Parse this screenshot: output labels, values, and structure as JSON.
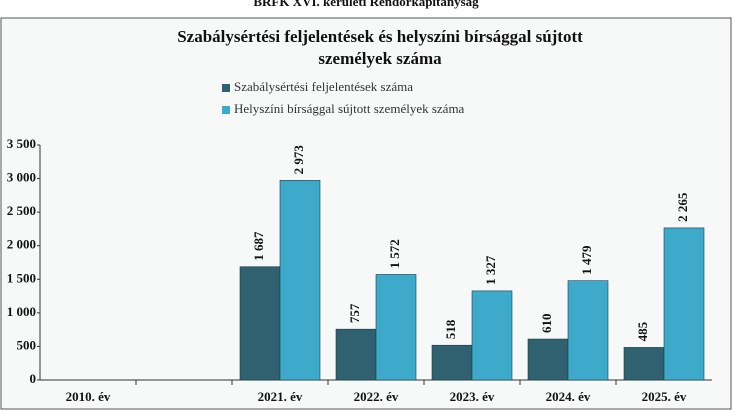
{
  "header": "BRFK XVI. kerületi Rendőrkapitányság",
  "chart_data": {
    "type": "bar",
    "title": "Szabálysértési feljelentések és helyszíni bírsággal sújtott személyek száma",
    "categories": [
      "2010. év",
      null,
      "2021. év",
      "2022. év",
      "2023. év",
      "2024. év",
      "2025. év"
    ],
    "series": [
      {
        "name": "Szabálysértési feljelentések száma",
        "color": "#2f6170",
        "values": [
          null,
          null,
          1687,
          757,
          518,
          610,
          485
        ],
        "value_labels": [
          null,
          null,
          "1 687",
          "757",
          "518",
          "610",
          "485"
        ]
      },
      {
        "name": "Helyszíni bírsággal sújtott személyek száma",
        "color": "#3eaacb",
        "values": [
          null,
          null,
          2973,
          1572,
          1327,
          1479,
          2265
        ],
        "value_labels": [
          null,
          null,
          "2 973",
          "1 572",
          "1 327",
          "1 479",
          "2 265"
        ]
      }
    ],
    "ylim": [
      0,
      3500
    ],
    "yticks": [
      0,
      500,
      {
        "value": 1000,
        "label": "1 000"
      },
      {
        "value": 1500,
        "label": "1 500"
      },
      {
        "value": 2000,
        "label": "2 000"
      },
      {
        "value": 2500,
        "label": "2 500"
      },
      {
        "value": 3000,
        "label": "3 000"
      },
      {
        "value": 3500,
        "label": "3 500"
      }
    ],
    "grid": false,
    "legend": "top"
  }
}
